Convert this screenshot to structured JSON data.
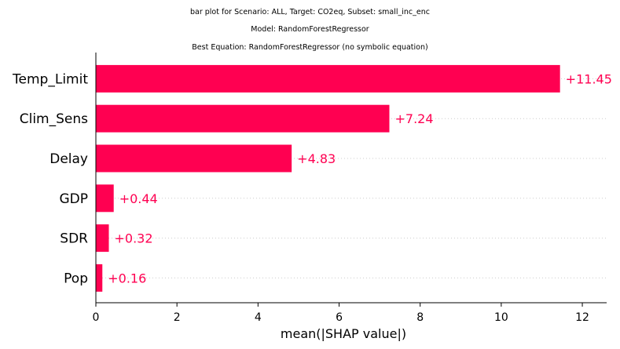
{
  "titles": {
    "line1": "bar plot for Scenario: ALL, Target: CO2eq, Subset: small_inc_enc",
    "line2": "Model: RandomForestRegressor",
    "line3": "Best Equation: RandomForestRegressor (no symbolic equation)"
  },
  "colors": {
    "bar": "#ff0051",
    "grid": "#cccccc",
    "axis": "#000000"
  },
  "chart_data": {
    "type": "bar",
    "orientation": "horizontal",
    "categories": [
      "Temp_Limit",
      "Clim_Sens",
      "Delay",
      "GDP",
      "SDR",
      "Pop"
    ],
    "values": [
      11.45,
      7.24,
      4.83,
      0.44,
      0.32,
      0.16
    ],
    "value_labels": [
      "+11.45",
      "+7.24",
      "+4.83",
      "+0.44",
      "+0.32",
      "+0.16"
    ],
    "xlabel": "mean(|SHAP value|)",
    "xlim": [
      0,
      12.6
    ],
    "xticks": [
      0,
      2,
      4,
      6,
      8,
      10,
      12
    ],
    "grid": "dotted horizontal lines per category"
  }
}
